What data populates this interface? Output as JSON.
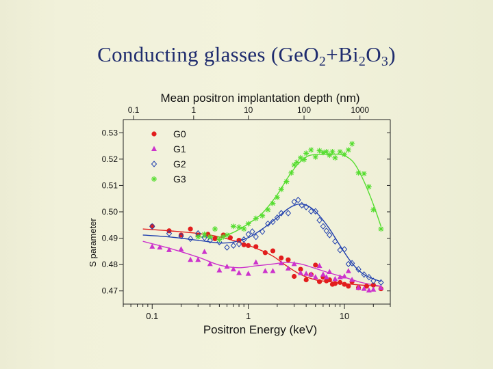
{
  "slide": {
    "title_main": "Conducting glasses (GeO",
    "title_sub1": "2",
    "title_plus": "+Bi",
    "title_sub2": "2",
    "title_o": "O",
    "title_sub3": "3",
    "title_close": ")"
  },
  "chart_data": {
    "type": "scatter",
    "title": "Mean positron implantation depth (nm)",
    "xlabel": "Positron Energy (keV)",
    "ylabel": "S parameter",
    "x_scale": "log",
    "xlim": [
      0.05,
      30
    ],
    "ylim": [
      0.465,
      0.535
    ],
    "x_ticks": [
      0.1,
      1,
      10
    ],
    "x_tick_labels": [
      "0.1",
      "1",
      "10"
    ],
    "top_ticks": [
      0.1,
      1,
      10,
      100,
      1000
    ],
    "top_tick_labels": [
      "0.1",
      "1",
      "10",
      "100",
      "1000"
    ],
    "top_tick_energies": [
      0.064,
      0.27,
      1.0,
      3.8,
      14.5
    ],
    "y_ticks": [
      0.47,
      0.48,
      0.49,
      0.5,
      0.51,
      0.52,
      0.53
    ],
    "y_tick_labels": [
      "0.47",
      "0.48",
      "0.49",
      "0.50",
      "0.51",
      "0.52",
      "0.53"
    ],
    "legend_position": "top-left",
    "series": [
      {
        "name": "G0",
        "marker": "circle",
        "color": "#e21d1d",
        "x": [
          0.1,
          0.15,
          0.2,
          0.25,
          0.3,
          0.38,
          0.45,
          0.55,
          0.65,
          0.8,
          0.9,
          1.0,
          1.2,
          1.5,
          1.8,
          2.2,
          2.6,
          3.0,
          3.5,
          4.0,
          4.5,
          5,
          5.5,
          6,
          6.5,
          7,
          7.5,
          8,
          9,
          10,
          11,
          12,
          14,
          17,
          20,
          24
        ],
        "y": [
          0.4945,
          0.4928,
          0.4912,
          0.4935,
          0.4912,
          0.4915,
          0.4898,
          0.4912,
          0.4902,
          0.4892,
          0.4875,
          0.4872,
          0.4868,
          0.4845,
          0.4852,
          0.4825,
          0.4818,
          0.4755,
          0.4782,
          0.4742,
          0.4762,
          0.4798,
          0.4735,
          0.4752,
          0.4738,
          0.4742,
          0.4725,
          0.4728,
          0.4732,
          0.4725,
          0.4718,
          0.4735,
          0.4712,
          0.4718,
          0.4722,
          0.4708
        ]
      },
      {
        "name": "G1",
        "marker": "triangle",
        "color": "#cc33cc",
        "x": [
          0.1,
          0.12,
          0.15,
          0.2,
          0.25,
          0.3,
          0.35,
          0.4,
          0.5,
          0.6,
          0.7,
          0.8,
          1.0,
          1.2,
          1.5,
          1.8,
          2.2,
          2.6,
          3.0,
          3.5,
          4.0,
          4.5,
          5,
          5.5,
          6,
          6.5,
          7,
          8,
          9,
          10,
          11,
          12,
          14,
          16,
          18,
          20,
          24
        ],
        "y": [
          0.4868,
          0.4865,
          0.4855,
          0.4858,
          0.4818,
          0.4818,
          0.4848,
          0.4802,
          0.4778,
          0.4792,
          0.4782,
          0.4768,
          0.4765,
          0.4808,
          0.4775,
          0.4775,
          0.4805,
          0.4785,
          0.4802,
          0.4768,
          0.4765,
          0.4762,
          0.4752,
          0.4795,
          0.4762,
          0.4752,
          0.4772,
          0.4745,
          0.4752,
          0.4755,
          0.4775,
          0.4742,
          0.4712,
          0.4708,
          0.4702,
          0.4705,
          0.4712
        ]
      },
      {
        "name": "G2",
        "marker": "diamond",
        "color": "#1f3fae",
        "x": [
          0.1,
          0.15,
          0.2,
          0.25,
          0.3,
          0.35,
          0.4,
          0.5,
          0.6,
          0.7,
          0.8,
          0.9,
          1.0,
          1.1,
          1.2,
          1.4,
          1.6,
          1.8,
          2.0,
          2.2,
          2.6,
          3.0,
          3.3,
          3.6,
          4.0,
          4.5,
          5,
          5.5,
          6,
          6.5,
          7,
          8,
          9,
          10,
          11,
          12,
          14,
          16,
          18,
          20,
          24
        ],
        "y": [
          0.4945,
          0.4918,
          0.4908,
          0.4898,
          0.4918,
          0.4902,
          0.4892,
          0.4885,
          0.4865,
          0.4872,
          0.4878,
          0.4895,
          0.4915,
          0.4925,
          0.4905,
          0.4925,
          0.4955,
          0.4962,
          0.4978,
          0.4995,
          0.4995,
          0.5038,
          0.5045,
          0.5025,
          0.5018,
          0.5002,
          0.5002,
          0.4968,
          0.4945,
          0.4928,
          0.4912,
          0.4888,
          0.4855,
          0.4858,
          0.4802,
          0.4805,
          0.4782,
          0.4762,
          0.4752,
          0.4738,
          0.4732
        ]
      },
      {
        "name": "G3",
        "marker": "asterisk",
        "color": "#55dd2f",
        "x": [
          0.3,
          0.35,
          0.4,
          0.45,
          0.5,
          0.55,
          0.6,
          0.7,
          0.8,
          0.9,
          1.0,
          1.2,
          1.4,
          1.6,
          1.8,
          2.0,
          2.2,
          2.5,
          2.8,
          3.0,
          3.2,
          3.5,
          3.8,
          4.0,
          4.5,
          5,
          5.5,
          6,
          6.5,
          7,
          7.5,
          8,
          9,
          10,
          11,
          12,
          14,
          16,
          18,
          20,
          24
        ],
        "y": [
          0.4905,
          0.4915,
          0.4905,
          0.4935,
          0.4895,
          0.4905,
          0.4912,
          0.4945,
          0.4942,
          0.4935,
          0.4955,
          0.4975,
          0.4985,
          0.5008,
          0.5032,
          0.5055,
          0.5085,
          0.5115,
          0.5148,
          0.5178,
          0.5188,
          0.5205,
          0.5198,
          0.5222,
          0.5235,
          0.5208,
          0.5232,
          0.5225,
          0.5228,
          0.5215,
          0.5228,
          0.5205,
          0.5228,
          0.5218,
          0.5235,
          0.5258,
          0.5148,
          0.5145,
          0.5095,
          0.5008,
          0.4935
        ]
      }
    ],
    "fit_curves": [
      {
        "name": "G0",
        "color": "#e21d1d",
        "x": [
          0.08,
          0.15,
          0.3,
          0.5,
          0.8,
          1.2,
          1.8,
          2.5,
          3.5,
          5,
          7,
          10,
          15,
          24
        ],
        "y": [
          0.4935,
          0.4928,
          0.4918,
          0.4905,
          0.4885,
          0.4862,
          0.4832,
          0.4795,
          0.4762,
          0.4742,
          0.4735,
          0.4728,
          0.4722,
          0.4718
        ]
      },
      {
        "name": "G1",
        "color": "#cc33cc",
        "x": [
          0.08,
          0.15,
          0.3,
          0.5,
          0.8,
          1.2,
          1.8,
          2.5,
          3.5,
          5,
          7,
          10,
          15,
          24
        ],
        "y": [
          0.4888,
          0.4862,
          0.4828,
          0.4798,
          0.4788,
          0.4795,
          0.4802,
          0.4808,
          0.4802,
          0.4785,
          0.4768,
          0.4752,
          0.4732,
          0.4718
        ]
      },
      {
        "name": "G2",
        "color": "#1f3fae",
        "x": [
          0.08,
          0.15,
          0.3,
          0.5,
          0.7,
          1.0,
          1.4,
          2.0,
          2.6,
          3.2,
          3.8,
          4.5,
          5.5,
          7,
          9,
          12,
          16,
          24
        ],
        "y": [
          0.4912,
          0.4905,
          0.4892,
          0.4882,
          0.4885,
          0.4902,
          0.4935,
          0.4978,
          0.5012,
          0.5028,
          0.5028,
          0.5015,
          0.4985,
          0.4935,
          0.4872,
          0.4805,
          0.4762,
          0.4735
        ]
      },
      {
        "name": "G3",
        "color": "#55dd2f",
        "x": [
          0.3,
          0.5,
          0.7,
          1.0,
          1.4,
          2.0,
          2.6,
          3.3,
          4.2,
          5.5,
          7,
          9,
          11,
          13,
          16,
          20,
          24
        ],
        "y": [
          0.4905,
          0.4905,
          0.4922,
          0.4955,
          0.4995,
          0.5065,
          0.5132,
          0.5182,
          0.5212,
          0.5218,
          0.5218,
          0.5218,
          0.5205,
          0.5178,
          0.5115,
          0.5028,
          0.4945
        ]
      }
    ]
  }
}
